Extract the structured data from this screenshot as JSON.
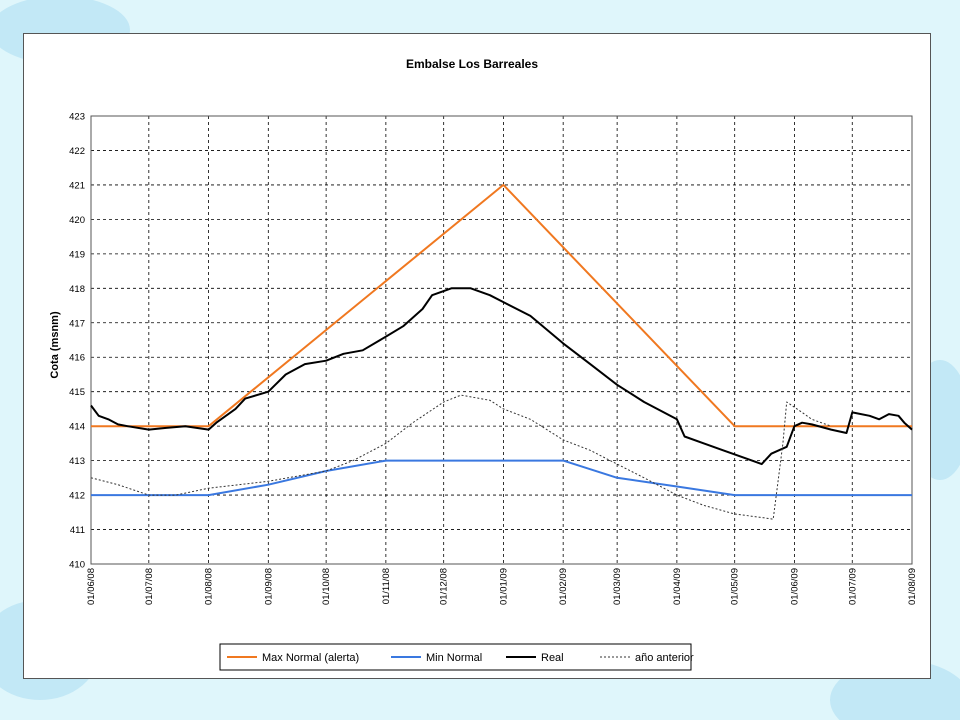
{
  "colors": {
    "background": "#dff6fb",
    "max_normal": "#f07820",
    "min_normal": "#3a78e0",
    "real": "#000000",
    "prev_year": "#333333"
  },
  "chart_data": {
    "type": "line",
    "title": "Embalse Los Barreales",
    "xlabel": "",
    "ylabel": "Cota (msnm)",
    "ylim": [
      410,
      423
    ],
    "yticks": [
      410,
      411,
      412,
      413,
      414,
      415,
      416,
      417,
      418,
      419,
      420,
      421,
      422,
      423
    ],
    "xlim": [
      "2008-06-01",
      "2009-08-01"
    ],
    "xticks": [
      "01/06/08",
      "01/07/08",
      "01/08/08",
      "01/09/08",
      "01/10/08",
      "01/11/08",
      "01/12/08",
      "01/01/09",
      "01/02/09",
      "01/03/09",
      "01/04/09",
      "01/05/09",
      "01/06/09",
      "01/07/09",
      "01/08/09"
    ],
    "grid": true,
    "legend_position": "bottom",
    "series": [
      {
        "name": "Max Normal (alerta)",
        "style": "solid",
        "points": [
          [
            "2008-06-01",
            414
          ],
          [
            "2008-08-01",
            414
          ],
          [
            "2009-01-01",
            421
          ],
          [
            "2009-05-01",
            414
          ],
          [
            "2009-08-01",
            414
          ]
        ]
      },
      {
        "name": "Min Normal",
        "style": "solid",
        "points": [
          [
            "2008-06-01",
            412
          ],
          [
            "2008-08-01",
            412
          ],
          [
            "2008-09-01",
            412.3
          ],
          [
            "2008-10-01",
            412.7
          ],
          [
            "2008-11-01",
            413
          ],
          [
            "2009-02-01",
            413
          ],
          [
            "2009-03-01",
            412.5
          ],
          [
            "2009-04-01",
            412.25
          ],
          [
            "2009-05-01",
            412
          ],
          [
            "2009-08-01",
            412
          ]
        ]
      },
      {
        "name": "Real",
        "style": "solid",
        "points": [
          [
            "2008-06-01",
            414.6
          ],
          [
            "2008-06-05",
            414.3
          ],
          [
            "2008-06-10",
            414.2
          ],
          [
            "2008-06-15",
            414.05
          ],
          [
            "2008-06-20",
            414
          ],
          [
            "2008-07-01",
            413.9
          ],
          [
            "2008-07-10",
            413.95
          ],
          [
            "2008-07-20",
            414
          ],
          [
            "2008-08-01",
            413.9
          ],
          [
            "2008-08-05",
            414.1
          ],
          [
            "2008-08-10",
            414.3
          ],
          [
            "2008-08-15",
            414.5
          ],
          [
            "2008-08-20",
            414.8
          ],
          [
            "2008-09-01",
            415
          ],
          [
            "2008-09-10",
            415.5
          ],
          [
            "2008-09-20",
            415.8
          ],
          [
            "2008-10-01",
            415.9
          ],
          [
            "2008-10-10",
            416.1
          ],
          [
            "2008-10-20",
            416.2
          ],
          [
            "2008-11-01",
            416.6
          ],
          [
            "2008-11-10",
            416.9
          ],
          [
            "2008-11-20",
            417.4
          ],
          [
            "2008-11-25",
            417.8
          ],
          [
            "2008-12-05",
            418
          ],
          [
            "2008-12-15",
            418
          ],
          [
            "2008-12-25",
            417.8
          ],
          [
            "2009-01-01",
            417.6
          ],
          [
            "2009-01-15",
            417.2
          ],
          [
            "2009-02-01",
            416.4
          ],
          [
            "2009-02-15",
            415.8
          ],
          [
            "2009-03-01",
            415.2
          ],
          [
            "2009-03-15",
            414.7
          ],
          [
            "2009-04-01",
            414.2
          ],
          [
            "2009-04-05",
            413.7
          ],
          [
            "2009-04-15",
            413.5
          ],
          [
            "2009-04-25",
            413.3
          ],
          [
            "2009-05-10",
            413
          ],
          [
            "2009-05-15",
            412.9
          ],
          [
            "2009-05-20",
            413.2
          ],
          [
            "2009-05-28",
            413.4
          ],
          [
            "2009-06-01",
            414
          ],
          [
            "2009-06-05",
            414.1
          ],
          [
            "2009-06-10",
            414.05
          ],
          [
            "2009-06-20",
            413.9
          ],
          [
            "2009-06-28",
            413.8
          ],
          [
            "2009-07-01",
            414.4
          ],
          [
            "2009-07-10",
            414.3
          ],
          [
            "2009-07-15",
            414.2
          ],
          [
            "2009-07-20",
            414.35
          ],
          [
            "2009-07-25",
            414.3
          ],
          [
            "2009-07-28",
            414.1
          ],
          [
            "2009-08-01",
            413.9
          ]
        ]
      },
      {
        "name": "año anterior",
        "style": "dotted",
        "points": [
          [
            "2008-06-01",
            412.5
          ],
          [
            "2008-06-15",
            412.3
          ],
          [
            "2008-07-01",
            412
          ],
          [
            "2008-07-15",
            412
          ],
          [
            "2008-08-01",
            412.2
          ],
          [
            "2008-09-01",
            412.4
          ],
          [
            "2008-10-01",
            412.7
          ],
          [
            "2008-10-15",
            413
          ],
          [
            "2008-11-01",
            413.5
          ],
          [
            "2008-11-15",
            414.1
          ],
          [
            "2008-12-01",
            414.7
          ],
          [
            "2008-12-10",
            414.9
          ],
          [
            "2008-12-25",
            414.75
          ],
          [
            "2009-01-01",
            414.5
          ],
          [
            "2009-01-15",
            414.2
          ],
          [
            "2009-02-01",
            413.6
          ],
          [
            "2009-02-15",
            413.3
          ],
          [
            "2009-03-01",
            412.9
          ],
          [
            "2009-03-15",
            412.5
          ],
          [
            "2009-04-01",
            412
          ],
          [
            "2009-04-15",
            411.7
          ],
          [
            "2009-05-01",
            411.45
          ],
          [
            "2009-05-15",
            411.35
          ],
          [
            "2009-05-21",
            411.3
          ],
          [
            "2009-05-26",
            413.5
          ],
          [
            "2009-05-28",
            414.7
          ],
          [
            "2009-06-05",
            414.4
          ],
          [
            "2009-06-10",
            414.2
          ],
          [
            "2009-06-20",
            414
          ]
        ]
      }
    ]
  }
}
